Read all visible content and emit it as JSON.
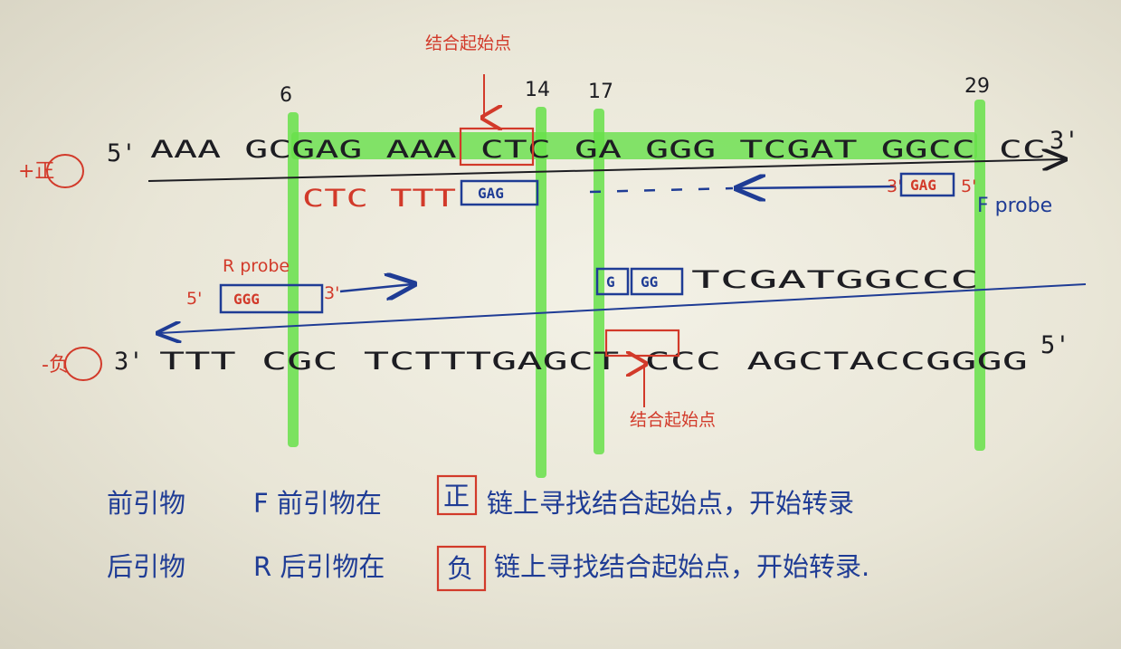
{
  "positions": [
    "6",
    "14",
    "17",
    "29"
  ],
  "start_site_label": "结合起始点",
  "plus_strand": {
    "label": "+正",
    "end5": "5'",
    "seq": "AAA GCGAG AAA CTC GA GGG TCGAT GGCC CC",
    "end3": "3'"
  },
  "f_primer": {
    "seq": "CTC TTT",
    "box": "GAG",
    "probe_box": "GAG",
    "probe_end3": "3'",
    "probe_end5": "5'",
    "probe_label": "F probe"
  },
  "r_primer": {
    "label": "R probe",
    "end5": "5'",
    "box": "GGG",
    "end3": "3'",
    "upper_box1": "G",
    "upper_box2": "GG",
    "upper_seq": "TCGATGGCCC"
  },
  "minus_strand": {
    "label": "-负",
    "end3": "3'",
    "seq": "TTT CGC TCTTTGAGCT CCC AGCTACCGGGG",
    "end5": "5'"
  },
  "notes": [
    {
      "title": "前引物",
      "text_a": "F 前引物在",
      "boxed": "正",
      "text_b": "链上寻找结合起始点，开始转录"
    },
    {
      "title": "后引物",
      "text_a": "R 后引物在",
      "boxed": "负",
      "text_b": "链上寻找结合起始点，开始转录."
    }
  ],
  "colors": {
    "highlight": "#67e04a",
    "red": "#d23a2a",
    "blue": "#1f3c95",
    "black": "#1d1d22"
  }
}
